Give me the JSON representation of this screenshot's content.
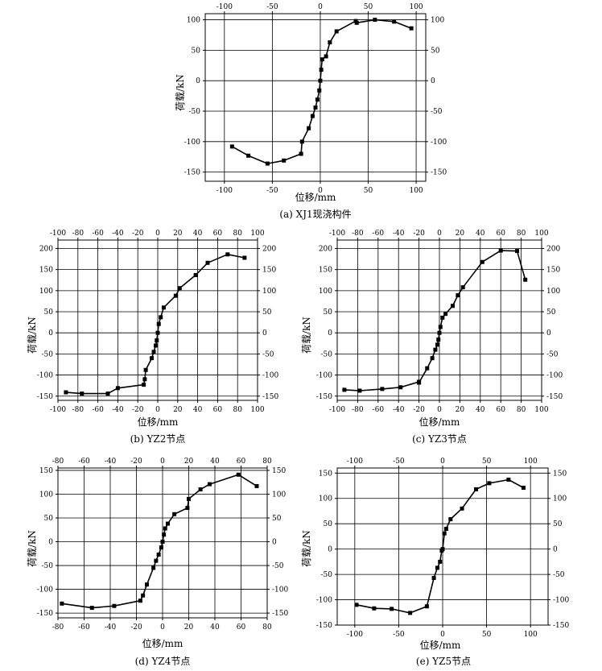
{
  "chart_data": [
    {
      "type": "line",
      "caption": "(a) XJ1现浇构件",
      "xlabel": "位移/mm",
      "ylabel": "荷载/kN",
      "xlim": [
        -120,
        110
      ],
      "ylim": [
        -165,
        110
      ],
      "xticks": [
        -100,
        -50,
        0,
        50,
        100
      ],
      "yticks": [
        -150,
        -100,
        -50,
        0,
        50,
        100
      ],
      "grid": true,
      "series": [
        {
          "x": [
            -92,
            -75,
            -55,
            -38,
            -20,
            -19,
            -12,
            -8,
            -5,
            -3,
            -1,
            0,
            1,
            2,
            6,
            10,
            17,
            37,
            38,
            57,
            77,
            95
          ],
          "y": [
            -108,
            -123,
            -136,
            -131,
            -120,
            -100,
            -78,
            -58,
            -44,
            -31,
            -16,
            0,
            18,
            35,
            40,
            63,
            81,
            98,
            95,
            100,
            97,
            86
          ]
        }
      ]
    },
    {
      "type": "line",
      "caption": "(b) YZ2节点",
      "xlabel": "位移/mm",
      "ylabel": "荷载/kN",
      "xlim": [
        -100,
        100
      ],
      "ylim": [
        -160,
        220
      ],
      "xticks": [
        -100,
        -80,
        -60,
        -40,
        -20,
        0,
        20,
        40,
        60,
        80,
        100
      ],
      "yticks": [
        -150,
        -100,
        -50,
        0,
        50,
        100,
        150,
        200
      ],
      "grid": true,
      "series": [
        {
          "x": [
            -92,
            -76,
            -50,
            -40,
            -14,
            -13,
            -12,
            -6,
            -4,
            -2,
            -1,
            0,
            1,
            3,
            6,
            18,
            22,
            38,
            50,
            70,
            87
          ],
          "y": [
            -141,
            -144,
            -144,
            -131,
            -123,
            -110,
            -88,
            -60,
            -45,
            -30,
            -18,
            0,
            21,
            37,
            60,
            88,
            106,
            137,
            166,
            186,
            178
          ]
        }
      ]
    },
    {
      "type": "line",
      "caption": "(c) YZ3节点",
      "xlabel": "位移/mm",
      "ylabel": "荷载/kN",
      "xlim": [
        -100,
        100
      ],
      "ylim": [
        -160,
        220
      ],
      "xticks": [
        -100,
        -80,
        -60,
        -40,
        -20,
        0,
        20,
        40,
        60,
        80,
        100
      ],
      "yticks": [
        -150,
        -100,
        -50,
        0,
        50,
        100,
        150,
        200
      ],
      "grid": true,
      "series": [
        {
          "x": [
            -93,
            -78,
            -56,
            -38,
            -20,
            -20,
            -12,
            -7,
            -4,
            -2,
            -1,
            0,
            1,
            3,
            6,
            13,
            18,
            23,
            42,
            60,
            76,
            84
          ],
          "y": [
            -135,
            -137,
            -133,
            -129,
            -116,
            -118,
            -84,
            -60,
            -40,
            -28,
            -16,
            0,
            14,
            36,
            45,
            64,
            89,
            108,
            168,
            195,
            194,
            126
          ]
        }
      ]
    },
    {
      "type": "line",
      "caption": "(d) YZ4节点",
      "xlabel": "位移/mm",
      "ylabel": "荷载/kN",
      "xlim": [
        -80,
        80
      ],
      "ylim": [
        -160,
        155
      ],
      "xticks": [
        -80,
        -60,
        -40,
        -20,
        0,
        20,
        40,
        60,
        80
      ],
      "yticks": [
        -150,
        -100,
        -50,
        0,
        50,
        100,
        150
      ],
      "grid": true,
      "series": [
        {
          "x": [
            -77,
            -54,
            -37,
            -17,
            -15,
            -12,
            -7,
            -5,
            -3,
            -1,
            0,
            1,
            2,
            4,
            9,
            19,
            20,
            29,
            36,
            58,
            72
          ],
          "y": [
            -130,
            -139,
            -135,
            -124,
            -113,
            -90,
            -55,
            -40,
            -27,
            -12,
            0,
            15,
            28,
            38,
            58,
            71,
            90,
            110,
            121,
            141,
            117
          ]
        }
      ]
    },
    {
      "type": "line",
      "caption": "(e) YZ5节点",
      "xlabel": "位移/mm",
      "ylabel": "荷载/kN",
      "xlim": [
        -120,
        120
      ],
      "ylim": [
        -150,
        160
      ],
      "xticks": [
        -100,
        -50,
        0,
        50,
        100
      ],
      "yticks": [
        -150,
        -100,
        -50,
        0,
        50,
        100,
        150
      ],
      "grid": true,
      "series": [
        {
          "x": [
            -98,
            -78,
            -58,
            -37,
            -18,
            -10,
            -6,
            -3,
            -1,
            0,
            2,
            4,
            9,
            22,
            38,
            53,
            75,
            92
          ],
          "y": [
            -110,
            -117,
            -118,
            -126,
            -113,
            -57,
            -37,
            -25,
            -3,
            0,
            31,
            40,
            59,
            80,
            118,
            130,
            137,
            121
          ]
        }
      ]
    }
  ]
}
